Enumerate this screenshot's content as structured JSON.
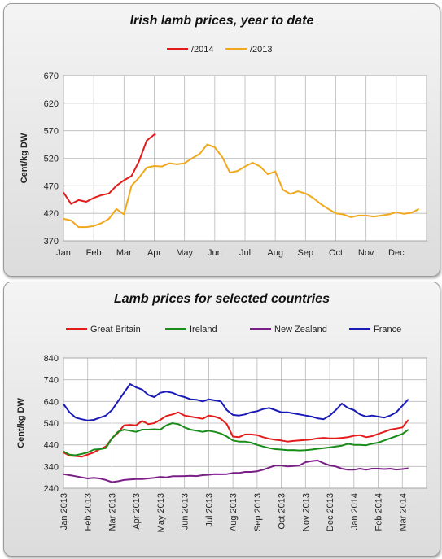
{
  "chart_data": [
    {
      "type": "line",
      "title": "Irish lamb prices, year to date",
      "ylabel": "Cent/kg DW",
      "xlabel": "",
      "ylim": [
        370,
        670
      ],
      "yticks": [
        370,
        420,
        470,
        520,
        570,
        620,
        670
      ],
      "categories": [
        "Jan",
        "Feb",
        "Mar",
        "Apr",
        "May",
        "Jun",
        "Jul",
        "Aug",
        "Sep",
        "Oct",
        "Nov",
        "Dec"
      ],
      "legend_position": "top",
      "grid": true,
      "series": [
        {
          "name": "/2014",
          "color": "#e41b1b",
          "x": [
            0,
            0.25,
            0.5,
            0.75,
            1,
            1.25,
            1.5,
            1.75,
            2,
            2.25,
            2.5,
            2.75,
            3,
            3.05
          ],
          "values": [
            458,
            437,
            444,
            441,
            448,
            453,
            456,
            470,
            480,
            488,
            515,
            552,
            563,
            563
          ]
        },
        {
          "name": "/2013",
          "color": "#f0a81e",
          "x": [
            0,
            0.25,
            0.5,
            0.75,
            1,
            1.25,
            1.5,
            1.75,
            2,
            2.25,
            2.5,
            2.75,
            3,
            3.25,
            3.5,
            3.75,
            4,
            4.25,
            4.5,
            4.75,
            5,
            5.25,
            5.5,
            5.75,
            6,
            6.25,
            6.5,
            6.75,
            7,
            7.25,
            7.5,
            7.75,
            8,
            8.25,
            8.5,
            8.75,
            9,
            9.25,
            9.5,
            9.75,
            10,
            10.25,
            10.5,
            10.75,
            11,
            11.25,
            11.5,
            11.75
          ],
          "values": [
            410,
            407,
            395,
            395,
            397,
            402,
            410,
            428,
            418,
            470,
            485,
            503,
            506,
            505,
            511,
            509,
            511,
            520,
            528,
            545,
            540,
            522,
            494,
            497,
            505,
            512,
            505,
            491,
            496,
            463,
            455,
            460,
            456,
            448,
            437,
            428,
            420,
            418,
            413,
            416,
            416,
            414,
            416,
            418,
            422,
            419,
            421,
            428
          ]
        }
      ]
    },
    {
      "type": "line",
      "title": "Lamb prices for selected countries",
      "ylabel": "Cent/kg DW",
      "xlabel": "",
      "ylim": [
        240,
        840
      ],
      "yticks": [
        240,
        340,
        440,
        540,
        640,
        740,
        840
      ],
      "categories": [
        "Jan 2013",
        "Feb 2013",
        "Mar 2013",
        "Apr 2013",
        "May 2013",
        "Jun 2013",
        "Jul 2013",
        "Aug 2013",
        "Sep 2013",
        "Oct 2013",
        "Nov 2013",
        "Dec 2013",
        "Jan 2014",
        "Feb 2014",
        "Mar 2014"
      ],
      "legend_position": "top",
      "grid": true,
      "series": [
        {
          "name": "Great Britain",
          "color": "#e41b1b",
          "x": [
            0,
            0.25,
            0.5,
            0.75,
            1,
            1.25,
            1.5,
            1.75,
            2,
            2.25,
            2.5,
            2.75,
            3,
            3.25,
            3.5,
            3.75,
            4,
            4.25,
            4.5,
            4.75,
            5,
            5.25,
            5.5,
            5.75,
            6,
            6.25,
            6.5,
            6.75,
            7,
            7.25,
            7.5,
            7.75,
            8,
            8.25,
            8.5,
            8.75,
            9,
            9.25,
            9.5,
            9.75,
            10,
            10.25,
            10.5,
            10.75,
            11,
            11.25,
            11.5,
            11.75,
            12,
            12.25,
            12.5,
            12.75,
            13,
            13.25,
            13.5,
            13.75,
            14,
            14.25
          ],
          "values": [
            405,
            390,
            388,
            385,
            395,
            405,
            420,
            432,
            470,
            495,
            530,
            532,
            530,
            550,
            535,
            540,
            555,
            573,
            580,
            590,
            575,
            570,
            565,
            560,
            575,
            570,
            560,
            535,
            478,
            475,
            488,
            488,
            485,
            475,
            468,
            463,
            460,
            455,
            458,
            460,
            462,
            465,
            470,
            472,
            470,
            470,
            472,
            475,
            482,
            485,
            475,
            480,
            490,
            500,
            510,
            515,
            520,
            555
          ]
        },
        {
          "name": "Ireland",
          "color": "#1a8c1a",
          "x": [
            0,
            0.25,
            0.5,
            0.75,
            1,
            1.25,
            1.5,
            1.75,
            2,
            2.25,
            2.5,
            2.75,
            3,
            3.25,
            3.5,
            3.75,
            4,
            4.25,
            4.5,
            4.75,
            5,
            5.25,
            5.5,
            5.75,
            6,
            6.25,
            6.5,
            6.75,
            7,
            7.25,
            7.5,
            7.75,
            8,
            8.25,
            8.5,
            8.75,
            9,
            9.25,
            9.5,
            9.75,
            10,
            10.25,
            10.5,
            10.75,
            11,
            11.25,
            11.5,
            11.75,
            12,
            12.25,
            12.5,
            12.75,
            13,
            13.25,
            13.5,
            13.75,
            14,
            14.25
          ],
          "values": [
            410,
            395,
            392,
            398,
            405,
            418,
            420,
            425,
            470,
            500,
            510,
            505,
            500,
            510,
            510,
            512,
            510,
            530,
            540,
            535,
            520,
            510,
            505,
            500,
            505,
            500,
            492,
            478,
            460,
            455,
            455,
            450,
            440,
            432,
            425,
            420,
            418,
            415,
            416,
            414,
            415,
            418,
            422,
            425,
            428,
            432,
            436,
            445,
            440,
            440,
            438,
            445,
            450,
            460,
            470,
            480,
            490,
            510
          ]
        },
        {
          "name": "New Zealand",
          "color": "#7a1f86",
          "x": [
            0,
            0.25,
            0.5,
            0.75,
            1,
            1.25,
            1.5,
            1.75,
            2,
            2.25,
            2.5,
            2.75,
            3,
            3.25,
            3.5,
            3.75,
            4,
            4.25,
            4.5,
            4.75,
            5,
            5.25,
            5.5,
            5.75,
            6,
            6.25,
            6.5,
            6.75,
            7,
            7.25,
            7.5,
            7.75,
            8,
            8.25,
            8.5,
            8.75,
            9,
            9.25,
            9.5,
            9.75,
            10,
            10.25,
            10.5,
            10.75,
            11,
            11.25,
            11.5,
            11.75,
            12,
            12.25,
            12.5,
            12.75,
            13,
            13.25,
            13.5,
            13.75,
            14,
            14.25
          ],
          "values": [
            305,
            300,
            295,
            290,
            285,
            288,
            285,
            278,
            268,
            272,
            278,
            280,
            282,
            282,
            285,
            288,
            292,
            290,
            295,
            295,
            296,
            297,
            296,
            300,
            302,
            305,
            304,
            305,
            310,
            310,
            315,
            315,
            318,
            325,
            335,
            345,
            345,
            340,
            342,
            345,
            360,
            365,
            368,
            355,
            345,
            340,
            330,
            325,
            325,
            330,
            325,
            330,
            330,
            328,
            330,
            326,
            328,
            332
          ]
        },
        {
          "name": "France",
          "color": "#1a1ab8",
          "x": [
            0,
            0.25,
            0.5,
            0.75,
            1,
            1.25,
            1.5,
            1.75,
            2,
            2.25,
            2.5,
            2.75,
            3,
            3.25,
            3.5,
            3.75,
            4,
            4.25,
            4.5,
            4.75,
            5,
            5.25,
            5.5,
            5.75,
            6,
            6.25,
            6.5,
            6.75,
            7,
            7.25,
            7.5,
            7.75,
            8,
            8.25,
            8.5,
            8.75,
            9,
            9.25,
            9.5,
            9.75,
            10,
            10.25,
            10.5,
            10.75,
            11,
            11.25,
            11.5,
            11.75,
            12,
            12.25,
            12.5,
            12.75,
            13,
            13.25,
            13.5,
            13.75,
            14,
            14.25
          ],
          "values": [
            628,
            590,
            565,
            558,
            552,
            555,
            565,
            575,
            600,
            640,
            680,
            720,
            705,
            695,
            670,
            660,
            680,
            685,
            680,
            668,
            660,
            650,
            648,
            640,
            650,
            645,
            640,
            600,
            578,
            575,
            580,
            590,
            595,
            605,
            610,
            600,
            590,
            590,
            585,
            580,
            575,
            570,
            562,
            558,
            575,
            600,
            630,
            610,
            600,
            580,
            570,
            575,
            570,
            565,
            575,
            590,
            620,
            650
          ]
        }
      ]
    }
  ]
}
